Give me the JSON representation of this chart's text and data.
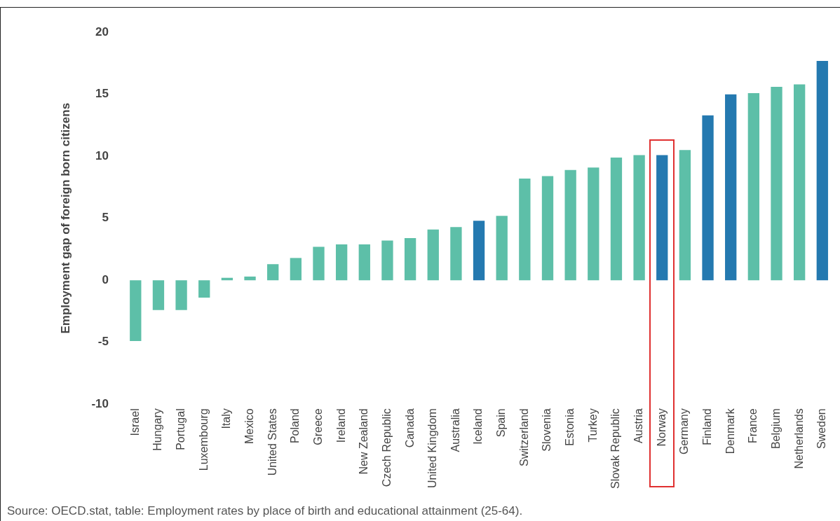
{
  "chart_data": {
    "type": "bar",
    "ylabel": "Employment gap of foreign born citizens",
    "categories": [
      "Israel",
      "Hungary",
      "Portugal",
      "Luxembourg",
      "Italy",
      "Mexico",
      "United States",
      "Poland",
      "Greece",
      "Ireland",
      "New Zealand",
      "Czech Republic",
      "Canada",
      "United Kingdom",
      "Australia",
      "Iceland",
      "Spain",
      "Switzerland",
      "Slovenia",
      "Estonia",
      "Turkey",
      "Slovak Republic",
      "Austria",
      "Norway",
      "Germany",
      "Finland",
      "Denmark",
      "France",
      "Belgium",
      "Netherlands",
      "Sweden"
    ],
    "values": [
      -4.9,
      -2.4,
      -2.4,
      -1.4,
      0.2,
      0.3,
      1.3,
      1.8,
      2.7,
      2.9,
      2.9,
      3.2,
      3.4,
      4.1,
      4.3,
      4.8,
      5.2,
      8.2,
      8.4,
      8.9,
      9.1,
      9.9,
      10.1,
      10.1,
      10.5,
      13.3,
      15.0,
      15.1,
      15.6,
      15.8,
      17.7
    ],
    "colors": [
      "#5dbfa8",
      "#5dbfa8",
      "#5dbfa8",
      "#5dbfa8",
      "#5dbfa8",
      "#5dbfa8",
      "#5dbfa8",
      "#5dbfa8",
      "#5dbfa8",
      "#5dbfa8",
      "#5dbfa8",
      "#5dbfa8",
      "#5dbfa8",
      "#5dbfa8",
      "#5dbfa8",
      "#2479b0",
      "#5dbfa8",
      "#5dbfa8",
      "#5dbfa8",
      "#5dbfa8",
      "#5dbfa8",
      "#5dbfa8",
      "#5dbfa8",
      "#2479b0",
      "#5dbfa8",
      "#2479b0",
      "#2479b0",
      "#5dbfa8",
      "#5dbfa8",
      "#5dbfa8",
      "#2479b0"
    ],
    "ylim": [
      -10,
      20
    ],
    "yticks": [
      -10,
      -5,
      0,
      5,
      10,
      15,
      20
    ],
    "grid": false,
    "legend": false,
    "annotations": [
      "Source: OECD.stat, table: Employment rates by place of birth and educational attainment (25-64)."
    ]
  }
}
